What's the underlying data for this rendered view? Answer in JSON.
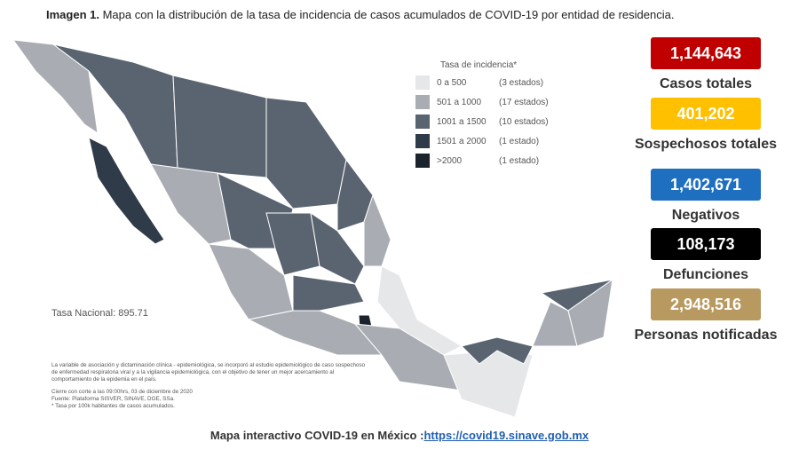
{
  "title": {
    "label": "Imagen 1.",
    "text": "Mapa con la distribución de la tasa de incidencia de casos acumulados de COVID-19 por entidad de residencia."
  },
  "legend": {
    "title": "Tasa de incidencia*",
    "items": [
      {
        "range": "0 a 500",
        "count": "(3 estados)",
        "color": "#e6e7e9"
      },
      {
        "range": "501 a 1000",
        "count": "(17 estados)",
        "color": "#a9adb3"
      },
      {
        "range": "1001 a 1500",
        "count": "(10 estados)",
        "color": "#5a6470"
      },
      {
        "range": "1501 a 2000",
        "count": "(1 estado)",
        "color": "#2f3b48"
      },
      {
        "range": ">2000",
        "count": "(1 estado)",
        "color": "#1b232c"
      }
    ]
  },
  "national_rate": "Tasa Nacional: 895.71",
  "notes": [
    "La variable de asociación y dictaminación clínica - epidemiológica, se incorporó al estudio epidemiológico de caso sospechoso de enfermedad respiratoria viral y a la vigilancia epidemiológica, con el objetivo de tener un mejor acercamiento al comportamiento de la epidemia en el país.",
    "Cierre con corte a las 09:00hrs, 03 de diciembre de 2020",
    "Fuente: Plataforma SISVER, SINAVE, DGE, SSa.",
    "* Tasa por 100k habitantes de casos acumulados."
  ],
  "stats": [
    {
      "value": "1,144,643",
      "label": "Casos totales",
      "color": "#c00000"
    },
    {
      "value": "401,202",
      "label": "Sospechosos totales",
      "color": "#ffc000"
    },
    {
      "value": "1,402,671",
      "label": "Negativos",
      "color": "#1f6fc0"
    },
    {
      "value": "108,173",
      "label": "Defunciones",
      "color": "#000000"
    },
    {
      "value": "2,948,516",
      "label": "Personas notificadas",
      "color": "#b8995f"
    }
  ],
  "footer": {
    "text": "Mapa interactivo COVID-19 en México :",
    "link": "https://covid19.sinave.gob.mx"
  }
}
